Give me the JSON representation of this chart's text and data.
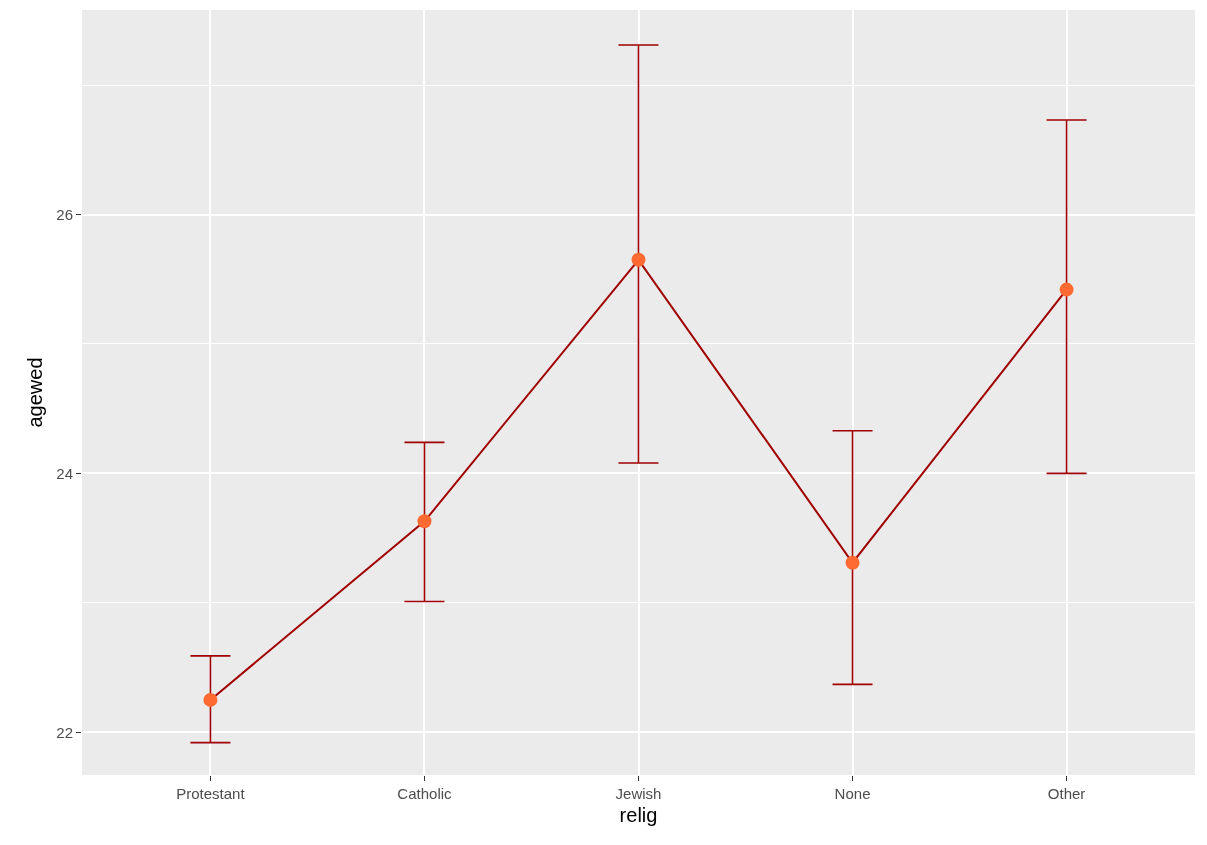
{
  "chart_data": {
    "type": "line",
    "xlabel": "relig",
    "ylabel": "agewed",
    "categories": [
      "Protestant",
      "Catholic",
      "Jewish",
      "None",
      "Other"
    ],
    "series": [
      {
        "color": "#a00000",
        "colors": [
          "#ff6a33",
          "#ff6a33",
          "#ff6a33",
          "#ff6a33",
          "#ff6a33"
        ],
        "values": [
          22.25,
          23.63,
          25.65,
          23.31,
          25.42
        ],
        "errors": [
          [
            21.92,
            22.59
          ],
          [
            23.01,
            24.24
          ],
          [
            24.08,
            27.31
          ],
          [
            22.37,
            24.33
          ],
          [
            24.0,
            26.73
          ]
        ]
      }
    ],
    "marker": "circle",
    "grid": true,
    "legend": false,
    "ylim": [
      21.67,
      27.58
    ],
    "yticks": [
      22,
      {
        "value": 23,
        "label": null
      },
      24,
      {
        "value": 25,
        "label": null
      },
      26,
      {
        "value": 27,
        "label": null
      }
    ]
  }
}
